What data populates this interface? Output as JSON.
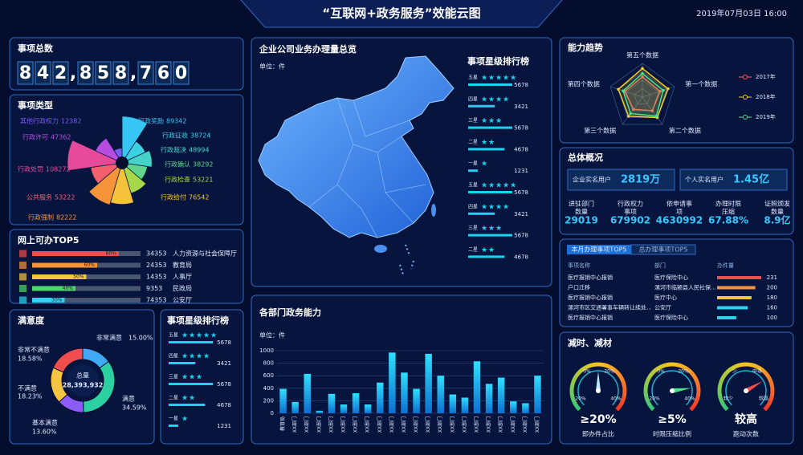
{
  "header": {
    "title": "“互联网+政务服务”效能云图",
    "datetime": "2019年07月03日  16:00"
  },
  "total": {
    "title": "事项总数",
    "digits": [
      "8",
      "4",
      "2",
      ",",
      "8",
      "5",
      "8",
      ",",
      "7",
      "6",
      "0"
    ]
  },
  "overview": {
    "title": "总体概况",
    "cards": [
      {
        "label": "企业实名用户",
        "value": "2819万"
      },
      {
        "label": "个人实名用户",
        "value": "1.45亿"
      }
    ],
    "stats": [
      {
        "label": [
          "进驻部门",
          "数量"
        ],
        "value": 29019
      },
      {
        "label": [
          "行政权力",
          "事项"
        ],
        "value": 679902
      },
      {
        "label": [
          "依申请事",
          "项"
        ],
        "value": 4630992
      },
      {
        "label": [
          "办理时限",
          "压缩"
        ],
        "value": "67.88%"
      },
      {
        "label": [
          "证照颁发",
          "数量"
        ],
        "value": "8.9亿"
      }
    ]
  },
  "table": {
    "tabs": [
      "本月办理事项TOP5",
      "总办理事项TOP5"
    ],
    "columns": [
      "事项名称",
      "部门",
      "办件量"
    ],
    "rows": [
      [
        "医疗报销中心报销",
        "医疗保险中心",
        231
      ],
      [
        "户口迁移",
        "漯河市临颍县人民社保...",
        200
      ],
      [
        "医疗报销中心报销",
        "医疗中心",
        180
      ],
      [
        "漯河市区交通署事车辆转让续处...",
        "公安厅",
        160
      ],
      [
        "医疗报销中心报销",
        "医疗保险中心",
        100
      ]
    ],
    "colors": [
      "#f04e4e",
      "#f7943a",
      "#f5c542",
      "#2fd3f0",
      "#2fd3f0"
    ]
  },
  "gauges": {
    "title": "减时、减材",
    "items": [
      {
        "value": "≥20%",
        "label": "即办件占比",
        "ticks": [
          "0%",
          "20%",
          "20%",
          "40%"
        ]
      },
      {
        "value": "≥5%",
        "label": "时限压缩比例",
        "ticks": [
          "0%",
          "20%",
          "20%",
          "40%"
        ]
      },
      {
        "value": "较高",
        "label": "跑动次数",
        "ticks": [
          "少",
          "中等",
          "较少",
          "较高"
        ]
      }
    ]
  },
  "chart_data": [
    {
      "type": "rose",
      "title": "事项类型",
      "categories": [
        "行政奖励",
        "行政征收",
        "行政裁决",
        "行政确认",
        "行政检查",
        "行政给付",
        "行政强制",
        "公共服务",
        "行政处罚",
        "行政许可",
        "其他行政权力"
      ],
      "values": [
        89342,
        38724,
        48994,
        38292,
        53221,
        76542,
        82222,
        53222,
        108272,
        47362,
        12382
      ],
      "colors": [
        "#36c6f4",
        "#3ad1e0",
        "#46d2c8",
        "#5fd68a",
        "#a6d84a",
        "#f5c33b",
        "#f7943a",
        "#f5606d",
        "#e84a9b",
        "#b84ce0",
        "#7a5cf0"
      ]
    },
    {
      "type": "hbar",
      "title": "网上可办TOP5",
      "categories": [
        "人力资源与社会保障厅",
        "教育局",
        "人事厅",
        "民政局",
        "公安厅"
      ],
      "values": [
        80,
        60,
        50,
        40,
        30
      ],
      "value_labels": [
        "80%",
        "60%",
        "50%",
        "40%",
        "30%"
      ],
      "counts": [
        34353,
        24353,
        14353,
        9353,
        74353
      ],
      "xlim": [
        0,
        100
      ],
      "colors": [
        "#f04e4e",
        "#f7943a",
        "#f5c542",
        "#4fd86a",
        "#2fd3f0"
      ]
    },
    {
      "type": "donut",
      "title": "满意度",
      "center_label": "总量",
      "center_value": "28,393,932",
      "categories": [
        "非常满意",
        "满意",
        "基本满意",
        "不满意",
        "非常不满意"
      ],
      "values": [
        15.0,
        34.59,
        13.6,
        18.23,
        18.58
      ],
      "value_labels": [
        "15.00%",
        "34.59%",
        "13.60%",
        "18.23%",
        "18.58%"
      ],
      "colors": [
        "#3fa9f5",
        "#2bd1a0",
        "#8b5cf6",
        "#f5c542",
        "#f04e4e"
      ]
    },
    {
      "type": "stars",
      "title": "事项星级排行榜",
      "categories": [
        "五星",
        "四星",
        "三星",
        "二星",
        "一星"
      ],
      "stars": [
        5,
        4,
        3,
        2,
        1
      ],
      "values": [
        5678,
        3421,
        5678,
        4678,
        1231
      ],
      "color": "#19d4f0"
    },
    {
      "type": "map",
      "title": "企业公司业务办理量总览",
      "unit": "单位：件"
    },
    {
      "type": "stars",
      "title": "事项星级排行榜",
      "categories": [
        "五星",
        "四星",
        "三星",
        "二星",
        "一星",
        "五星",
        "四星",
        "三星",
        "二星"
      ],
      "stars": [
        5,
        4,
        3,
        2,
        1,
        5,
        4,
        3,
        2
      ],
      "values": [
        5678,
        3421,
        5678,
        4678,
        1231,
        5678,
        3421,
        5678,
        4678
      ],
      "color": "#19d4f0"
    },
    {
      "type": "bar",
      "title": "各部门政务能力",
      "unit": "单位：件",
      "categories": [
        "教育局",
        "XX部门",
        "XX部门",
        "XX部门",
        "XX部门",
        "XX部门",
        "XX部门",
        "XX部门",
        "XX部门",
        "XX部门",
        "XX部门",
        "XX部门",
        "XX部门",
        "XX部门",
        "XX部门",
        "XX部门",
        "XX部门",
        "XX部门",
        "XX部门",
        "XX部门",
        "XX部门",
        "XX部门"
      ],
      "values": [
        390,
        180,
        630,
        40,
        310,
        140,
        320,
        140,
        490,
        970,
        650,
        390,
        950,
        600,
        300,
        250,
        830,
        470,
        570,
        190,
        160,
        600
      ],
      "ylim": [
        0,
        1000
      ],
      "yticks": [
        0,
        200,
        400,
        600,
        800,
        1000
      ],
      "grid": true,
      "color": "#1fb8f0"
    },
    {
      "type": "radar",
      "title": "能力趋势",
      "categories": [
        "第一个数据",
        "第二个数据",
        "第三个数据",
        "第四个数据",
        "第五个数据"
      ],
      "rlim": [
        0,
        100
      ],
      "series": [
        {
          "name": "2017年",
          "color": "#ff5a5a",
          "values": [
            55,
            50,
            45,
            55,
            60
          ]
        },
        {
          "name": "2018年",
          "color": "#f5d020",
          "values": [
            80,
            75,
            70,
            75,
            85
          ]
        },
        {
          "name": "2019年",
          "color": "#4fe08a",
          "values": [
            65,
            70,
            60,
            60,
            70
          ]
        }
      ]
    }
  ]
}
